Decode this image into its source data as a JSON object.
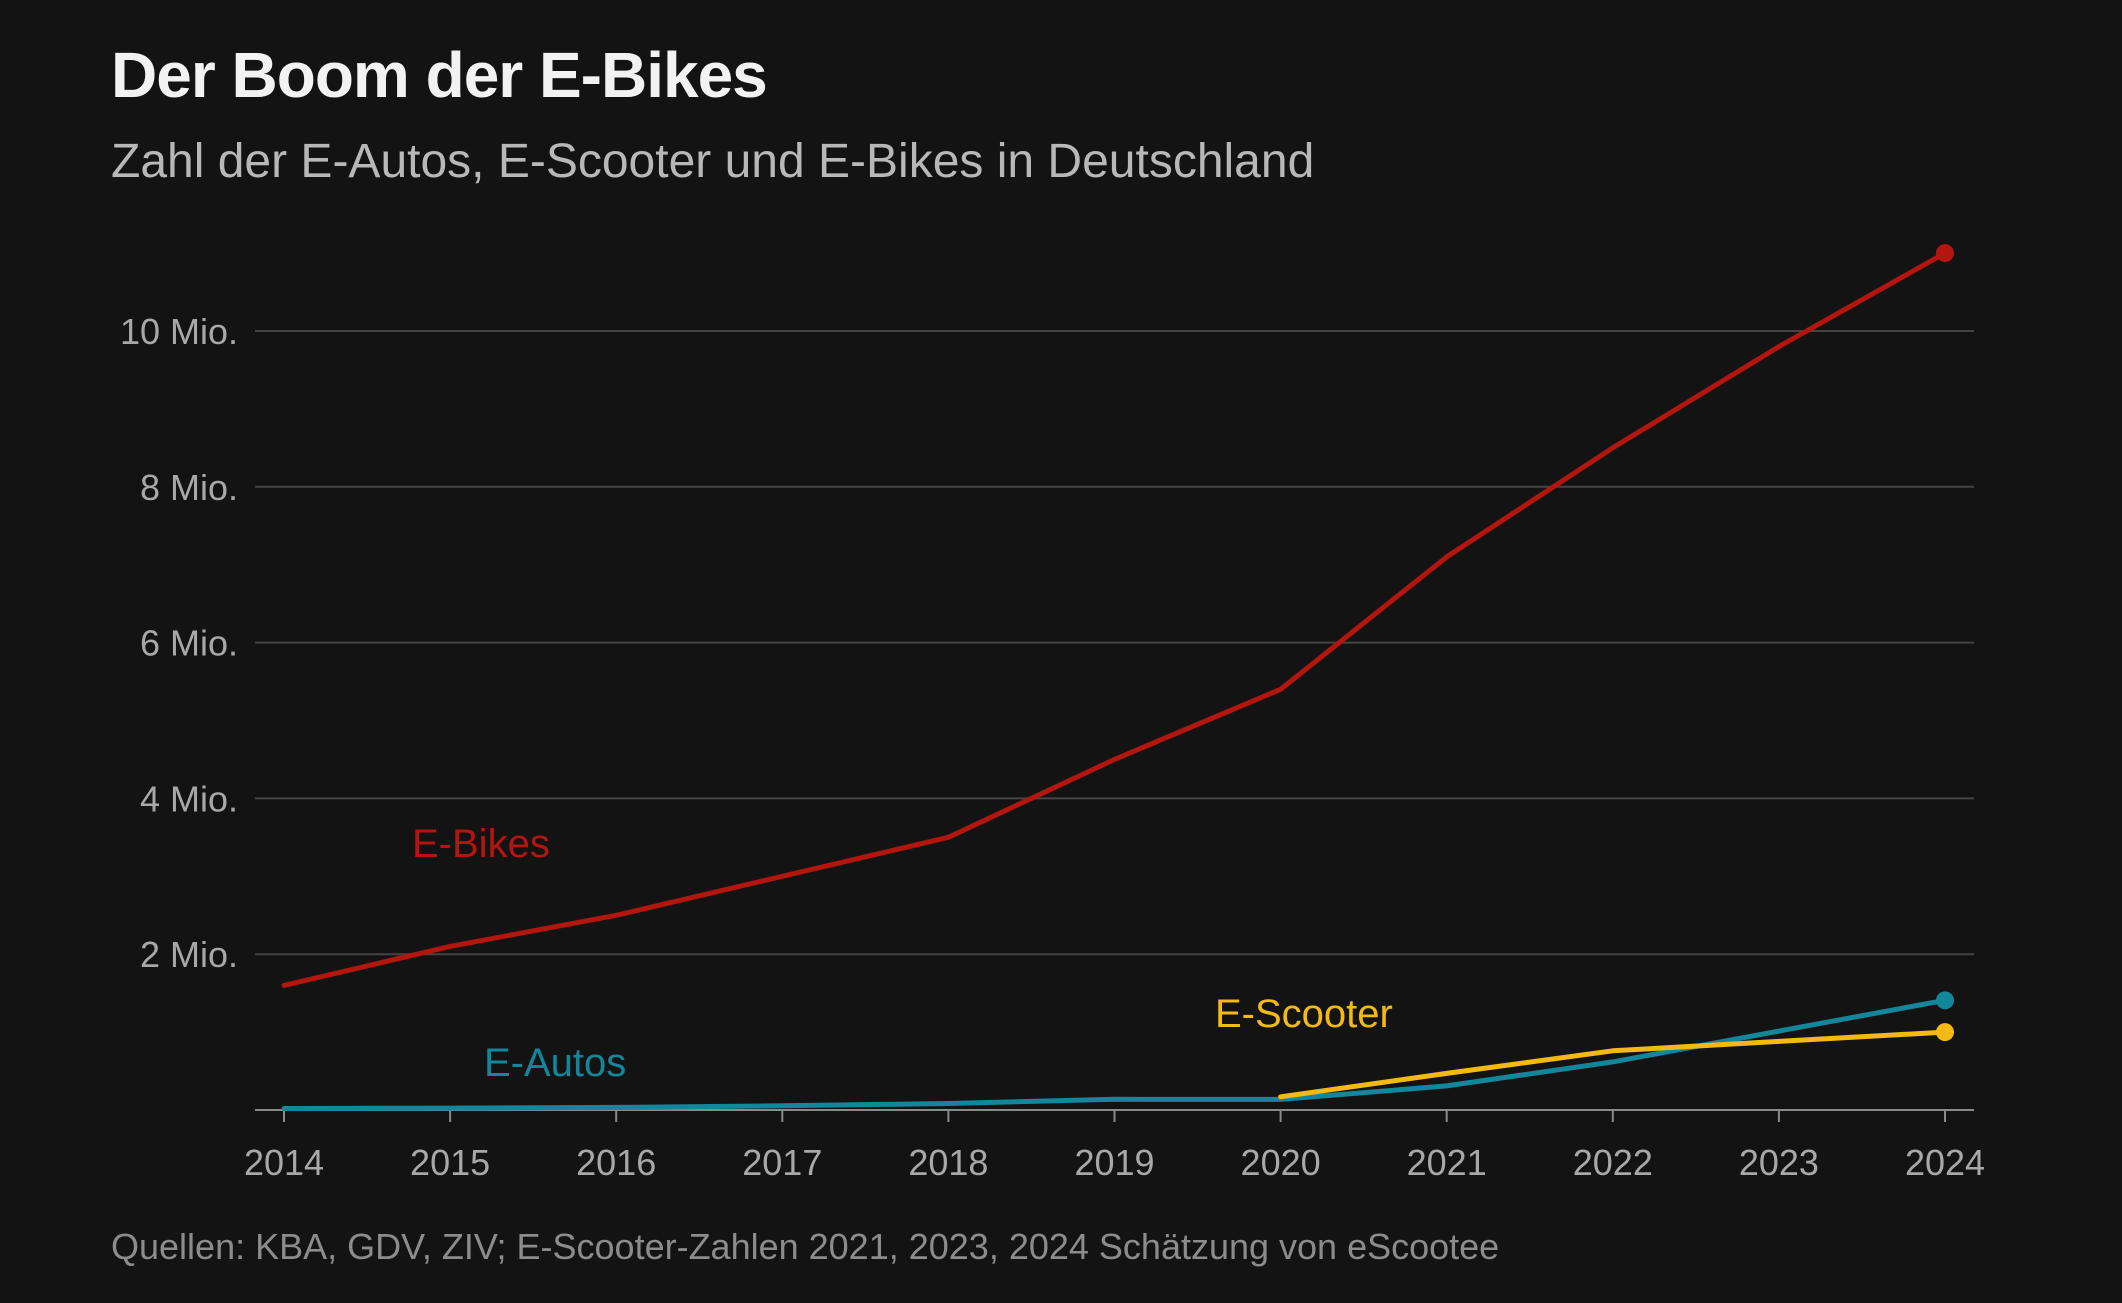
{
  "header": {
    "title": "Der Boom der E-Bikes",
    "subtitle": "Zahl der E-Autos, E-Scooter und E-Bikes in Deutschland"
  },
  "footer": {
    "source": "Quellen: KBA, GDV, ZIV; E-Scooter-Zahlen 2021, 2023, 2024 Schätzung von eScootee"
  },
  "chart_data": {
    "type": "line",
    "title": "Der Boom der E-Bikes",
    "subtitle": "Zahl der E-Autos, E-Scooter und E-Bikes in Deutschland",
    "xlabel": "",
    "ylabel": "",
    "x": [
      2014,
      2015,
      2016,
      2017,
      2018,
      2019,
      2020,
      2021,
      2022,
      2023,
      2024
    ],
    "ylim": [
      0,
      11000000
    ],
    "y_ticks": [
      {
        "value": 2000000,
        "label": "2 Mio."
      },
      {
        "value": 4000000,
        "label": "4 Mio."
      },
      {
        "value": 6000000,
        "label": "6 Mio."
      },
      {
        "value": 8000000,
        "label": "8 Mio."
      },
      {
        "value": 10000000,
        "label": "10 Mio."
      }
    ],
    "x_tick_labels": [
      "2014",
      "2015",
      "2016",
      "2017",
      "2018",
      "2019",
      "2020",
      "2021",
      "2022",
      "2023",
      "2024"
    ],
    "grid": true,
    "legend": "direct-labels",
    "series": [
      {
        "name": "E-Bikes",
        "color": "#b3150f",
        "x": [
          2014,
          2015,
          2016,
          2017,
          2018,
          2019,
          2020,
          2021,
          2022,
          2023,
          2024
        ],
        "values": [
          1600000,
          2100000,
          2500000,
          3000000,
          3500000,
          4500000,
          5400000,
          7100000,
          8500000,
          9800000,
          11000000
        ]
      },
      {
        "name": "E-Autos",
        "color": "#12869a",
        "x": [
          2014,
          2015,
          2016,
          2017,
          2018,
          2019,
          2020,
          2021,
          2022,
          2023,
          2024
        ],
        "values": [
          19000,
          25000,
          34000,
          54000,
          83000,
          137000,
          136000,
          309000,
          618000,
          1013000,
          1408000
        ]
      },
      {
        "name": "E-Scooter",
        "color": "#f5b914",
        "x": [
          2020,
          2021,
          2022,
          2023,
          2024
        ],
        "values": [
          170000,
          470000,
          760000,
          880000,
          1000000
        ]
      }
    ]
  }
}
